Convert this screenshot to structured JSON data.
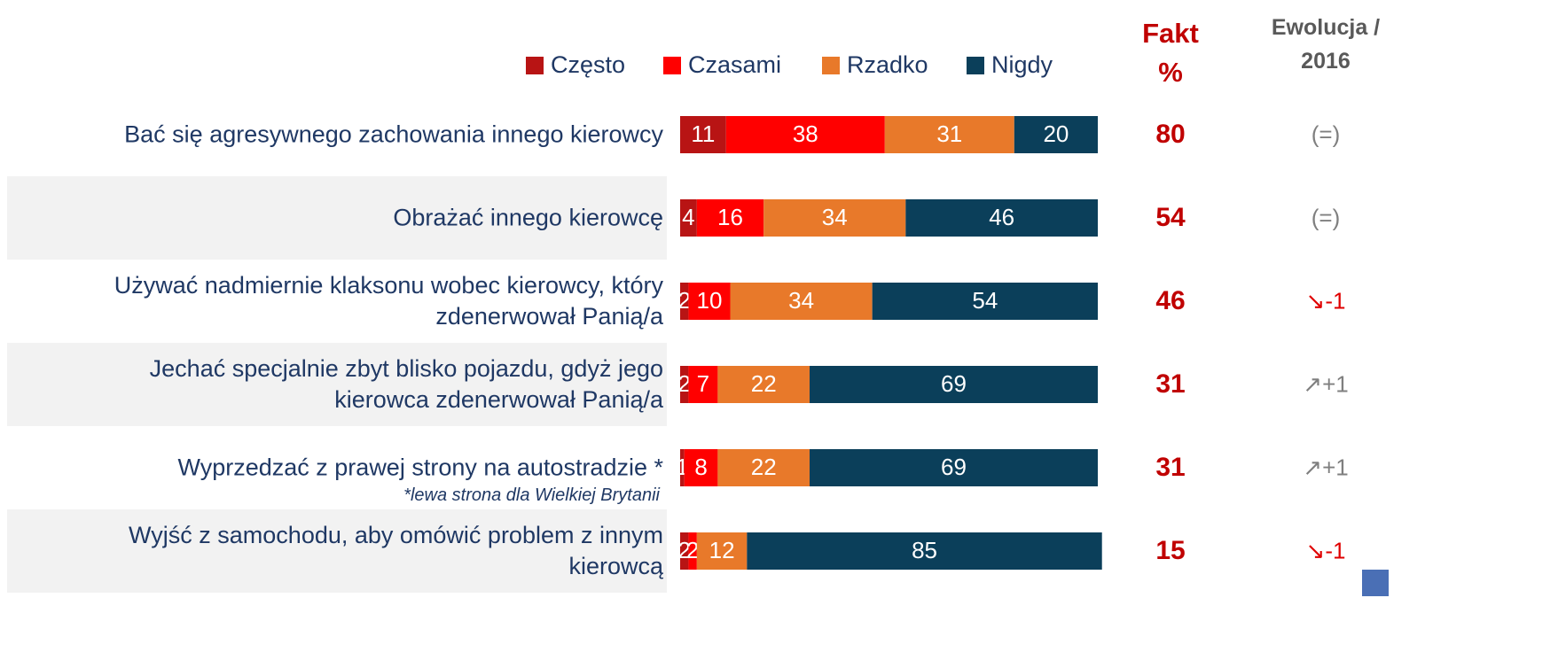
{
  "chart_data": {
    "type": "bar",
    "orientation": "horizontal",
    "stacked": true,
    "categories": [
      "Bać się agresywnego zachowania innego kierowcy",
      "Obrażać innego kierowcę",
      "Używać nadmiernie klaksonu wobec kierowcy, który\nzdenerwował Panią/a",
      "Jechać specjalnie zbyt blisko pojazdu, gdyż jego\nkierowca zdenerwował Panią/a",
      "Wyprzedzać z prawej strony na autostradzie *",
      "Wyjść z samochodu, aby omówić problem z innym\nkierowcą"
    ],
    "footnote": "*lewa strona dla Wielkiej Brytanii",
    "xlim": [
      0,
      100
    ],
    "series": [
      {
        "name": "Często",
        "color": "#b81414",
        "values": [
          11,
          4,
          2,
          2,
          1,
          2
        ]
      },
      {
        "name": "Czasami",
        "color": "#ff0000",
        "values": [
          38,
          16,
          10,
          7,
          8,
          2
        ]
      },
      {
        "name": "Rzadko",
        "color": "#e8792a",
        "values": [
          31,
          34,
          34,
          22,
          22,
          12
        ]
      },
      {
        "name": "Nigdy",
        "color": "#0b3f5a",
        "values": [
          20,
          46,
          54,
          69,
          69,
          85
        ]
      }
    ],
    "fakt_header": "Fakt\n%",
    "fakt": [
      80,
      54,
      46,
      31,
      31,
      15
    ],
    "evolution_header": "Ewolucja /\n2016",
    "evolution": [
      "(=)",
      "(=)",
      "↘-1",
      "↗+1",
      "↗+1",
      "↘-1"
    ],
    "evolution_colors": [
      "#7f7f7f",
      "#7f7f7f",
      "#e00000",
      "#7f7f7f",
      "#7f7f7f",
      "#e00000"
    ]
  }
}
